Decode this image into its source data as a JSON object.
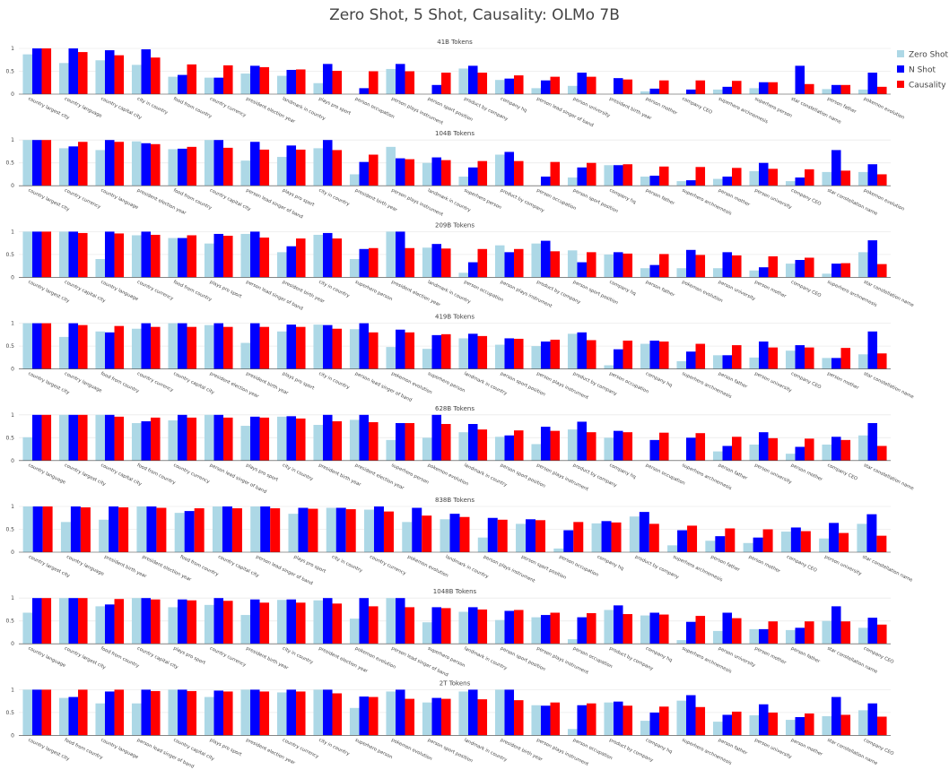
{
  "title": "Zero Shot, 5 Shot, Causality: OLMo 7B",
  "colors": {
    "Zero Shot": "#add8e6",
    "N Shot": "#0000ff",
    "Causality": "#ff0000"
  },
  "chart_data": [
    {
      "type": "bar",
      "title": "41B Tokens",
      "ylim": [
        0,
        1
      ],
      "yticks": [
        "0",
        "0.5",
        "1"
      ],
      "categories": [
        "country largest city",
        "country language",
        "country capital city",
        "city in country",
        "food from country",
        "country currency",
        "president election year",
        "landmark in country",
        "plays pro sport",
        "person occupation",
        "person plays instrument",
        "person sport position",
        "product by company",
        "company hq",
        "person lead singer of band",
        "person university",
        "president birth year",
        "person mother",
        "company CEO",
        "superhero archnemesis",
        "superhero person",
        "star constellation name",
        "person father",
        "pokemon evolution"
      ],
      "series": [
        {
          "name": "Zero Shot",
          "values": [
            0.87,
            0.68,
            0.74,
            0.64,
            0.38,
            0.36,
            0.45,
            0.4,
            0.24,
            0.0,
            0.55,
            0.0,
            0.56,
            0.31,
            0.13,
            0.18,
            0.0,
            0.06,
            0.0,
            0.1,
            0.13,
            0.0,
            0.11,
            0.1
          ]
        },
        {
          "name": "N Shot",
          "values": [
            1.0,
            1.0,
            0.96,
            0.98,
            0.42,
            0.36,
            0.62,
            0.53,
            0.66,
            0.13,
            0.66,
            0.2,
            0.62,
            0.34,
            0.3,
            0.47,
            0.35,
            0.12,
            0.1,
            0.16,
            0.26,
            0.62,
            0.2,
            0.47
          ]
        },
        {
          "name": "Causality",
          "values": [
            1.0,
            0.92,
            0.85,
            0.8,
            0.65,
            0.63,
            0.59,
            0.54,
            0.51,
            0.5,
            0.5,
            0.47,
            0.47,
            0.41,
            0.38,
            0.38,
            0.32,
            0.3,
            0.3,
            0.29,
            0.26,
            0.22,
            0.2,
            0.16
          ]
        }
      ]
    },
    {
      "type": "bar",
      "title": "104B Tokens",
      "ylim": [
        0,
        1
      ],
      "yticks": [
        "0",
        "0.5",
        "1"
      ],
      "categories": [
        "country largest city",
        "country currency",
        "country language",
        "president election year",
        "food from country",
        "country capital city",
        "person lead singer of band",
        "plays pro sport",
        "city in country",
        "president birth year",
        "person plays instrument",
        "landmark in country",
        "superhero person",
        "product by company",
        "person occupation",
        "person sport position",
        "company hq",
        "person father",
        "superhero archnemesis",
        "person mother",
        "person university",
        "company CEO",
        "star constellation name",
        "pokemon evolution"
      ],
      "series": [
        {
          "name": "Zero Shot",
          "values": [
            1.0,
            0.82,
            0.78,
            0.97,
            0.8,
            1.0,
            0.55,
            0.63,
            0.82,
            0.25,
            0.85,
            0.5,
            0.2,
            0.68,
            0.0,
            0.18,
            0.45,
            0.2,
            0.1,
            0.15,
            0.32,
            0.1,
            0.3,
            0.3
          ]
        },
        {
          "name": "N Shot",
          "values": [
            1.0,
            0.86,
            1.0,
            0.93,
            0.81,
            1.0,
            0.96,
            0.88,
            1.0,
            0.52,
            0.6,
            0.62,
            0.4,
            0.74,
            0.2,
            0.4,
            0.45,
            0.22,
            0.12,
            0.2,
            0.5,
            0.18,
            0.78,
            0.47
          ]
        },
        {
          "name": "Causality",
          "values": [
            1.0,
            0.96,
            0.96,
            0.91,
            0.85,
            0.83,
            0.79,
            0.79,
            0.78,
            0.68,
            0.58,
            0.56,
            0.54,
            0.54,
            0.52,
            0.5,
            0.47,
            0.42,
            0.41,
            0.39,
            0.37,
            0.36,
            0.33,
            0.25
          ]
        }
      ]
    },
    {
      "type": "bar",
      "title": "209B Tokens",
      "ylim": [
        0,
        1
      ],
      "yticks": [
        "0",
        "0.5",
        "1"
      ],
      "categories": [
        "country largest city",
        "country capital city",
        "country language",
        "country currency",
        "food from country",
        "plays pro sport",
        "person lead singer of band",
        "president birth year",
        "city in country",
        "superhero person",
        "president election year",
        "landmark in country",
        "person occupation",
        "person plays instrument",
        "product by company",
        "person sport position",
        "company hq",
        "person father",
        "pokemon evolution",
        "person university",
        "person mother",
        "company CEO",
        "superhero archnemesis",
        "star constellation name"
      ],
      "series": [
        {
          "name": "Zero Shot",
          "values": [
            1.0,
            1.0,
            0.4,
            0.92,
            0.86,
            0.74,
            0.95,
            0.55,
            0.93,
            0.4,
            1.0,
            0.65,
            0.1,
            0.7,
            0.74,
            0.59,
            0.5,
            0.2,
            0.2,
            0.2,
            0.15,
            0.3,
            0.08,
            0.55
          ]
        },
        {
          "name": "N Shot",
          "values": [
            1.0,
            1.0,
            1.0,
            1.0,
            0.86,
            0.95,
            1.0,
            0.68,
            0.97,
            0.62,
            1.0,
            0.73,
            0.33,
            0.55,
            0.8,
            0.33,
            0.55,
            0.27,
            0.6,
            0.55,
            0.22,
            0.38,
            0.3,
            0.81
          ]
        },
        {
          "name": "Causality",
          "values": [
            1.0,
            0.97,
            0.96,
            0.93,
            0.92,
            0.91,
            0.87,
            0.85,
            0.85,
            0.64,
            0.64,
            0.63,
            0.62,
            0.62,
            0.57,
            0.55,
            0.52,
            0.51,
            0.49,
            0.48,
            0.46,
            0.43,
            0.31,
            0.29
          ]
        }
      ]
    },
    {
      "type": "bar",
      "title": "419B Tokens",
      "ylim": [
        0,
        1
      ],
      "yticks": [
        "0",
        "0.5",
        "1"
      ],
      "categories": [
        "country largest city",
        "country language",
        "food from country",
        "country currency",
        "country capital city",
        "president election year",
        "president birth year",
        "plays pro sport",
        "city in country",
        "person lead singer of band",
        "pokemon evolution",
        "superhero person",
        "landmark in country",
        "person sport position",
        "person plays instrument",
        "product by company",
        "person occupation",
        "company hq",
        "superhero archnemesis",
        "person father",
        "person university",
        "company CEO",
        "person mother",
        "star constellation name"
      ],
      "series": [
        {
          "name": "Zero Shot",
          "values": [
            1.0,
            0.7,
            0.82,
            0.88,
            1.0,
            0.96,
            0.57,
            0.82,
            0.97,
            0.87,
            0.48,
            0.44,
            0.67,
            0.53,
            0.5,
            0.77,
            0.08,
            0.55,
            0.17,
            0.3,
            0.25,
            0.4,
            0.24,
            0.32
          ]
        },
        {
          "name": "N Shot",
          "values": [
            1.0,
            1.0,
            0.8,
            1.0,
            1.0,
            1.0,
            1.0,
            0.97,
            0.96,
            1.0,
            0.86,
            0.74,
            0.77,
            0.67,
            0.6,
            0.8,
            0.43,
            0.62,
            0.38,
            0.3,
            0.6,
            0.52,
            0.24,
            0.82
          ]
        },
        {
          "name": "Causality",
          "values": [
            1.0,
            0.96,
            0.94,
            0.92,
            0.92,
            0.92,
            0.92,
            0.92,
            0.88,
            0.8,
            0.8,
            0.76,
            0.72,
            0.66,
            0.64,
            0.63,
            0.62,
            0.6,
            0.55,
            0.52,
            0.47,
            0.47,
            0.46,
            0.34
          ]
        }
      ]
    },
    {
      "type": "bar",
      "title": "628B Tokens",
      "ylim": [
        0,
        1
      ],
      "yticks": [
        "0",
        "0.5",
        "1"
      ],
      "categories": [
        "country language",
        "country largest city",
        "country capital city",
        "food from country",
        "country currency",
        "person lead singer of band",
        "plays pro sport",
        "city in country",
        "president birth year",
        "president election year",
        "superhero person",
        "pokemon evolution",
        "landmark in country",
        "person sport position",
        "person plays instrument",
        "product by company",
        "company hq",
        "person occupation",
        "superhero archnemesis",
        "person father",
        "person university",
        "person mother",
        "company CEO",
        "star constellation name"
      ],
      "series": [
        {
          "name": "Zero Shot",
          "values": [
            0.51,
            1.0,
            1.0,
            0.82,
            0.88,
            1.0,
            0.76,
            0.96,
            0.78,
            0.89,
            0.45,
            0.5,
            0.62,
            0.52,
            0.36,
            0.68,
            0.5,
            0.0,
            0.0,
            0.2,
            0.35,
            0.15,
            0.35,
            0.55
          ]
        },
        {
          "name": "N Shot",
          "values": [
            1.0,
            1.0,
            1.0,
            0.86,
            1.0,
            1.0,
            0.96,
            0.97,
            1.0,
            1.0,
            0.82,
            1.0,
            0.8,
            0.55,
            0.74,
            0.85,
            0.65,
            0.45,
            0.5,
            0.32,
            0.62,
            0.3,
            0.52,
            0.82
          ]
        },
        {
          "name": "Causality",
          "values": [
            1.0,
            1.0,
            0.96,
            0.94,
            0.94,
            0.94,
            0.94,
            0.92,
            0.86,
            0.84,
            0.82,
            0.8,
            0.68,
            0.66,
            0.65,
            0.62,
            0.62,
            0.61,
            0.6,
            0.52,
            0.49,
            0.48,
            0.45,
            0.32
          ]
        }
      ]
    },
    {
      "type": "bar",
      "title": "838B Tokens",
      "ylim": [
        0,
        1
      ],
      "yticks": [
        "0",
        "0.5",
        "1"
      ],
      "categories": [
        "country largest city",
        "country language",
        "president birth year",
        "president election year",
        "food from country",
        "country capital city",
        "person lead singer of band",
        "plays pro sport",
        "city in country",
        "country currency",
        "pokemon evolution",
        "landmark in country",
        "person plays instrument",
        "person sport position",
        "person occupation",
        "company hq",
        "product by company",
        "superhero archnemesis",
        "person father",
        "person mother",
        "company CEO",
        "person university",
        "star constellation name"
      ],
      "series": [
        {
          "name": "Zero Shot",
          "values": [
            1.0,
            0.66,
            0.71,
            1.0,
            0.86,
            1.0,
            1.0,
            0.84,
            0.97,
            0.93,
            0.66,
            0.72,
            0.32,
            0.62,
            0.08,
            0.63,
            0.78,
            0.15,
            0.25,
            0.2,
            0.45,
            0.3,
            0.62
          ]
        },
        {
          "name": "N Shot",
          "values": [
            1.0,
            1.0,
            1.0,
            1.0,
            0.9,
            1.0,
            1.0,
            0.97,
            0.97,
            1.0,
            0.97,
            0.84,
            0.75,
            0.72,
            0.48,
            0.68,
            0.88,
            0.48,
            0.35,
            0.32,
            0.54,
            0.64,
            0.83
          ]
        },
        {
          "name": "Causality",
          "values": [
            1.0,
            0.98,
            0.98,
            0.97,
            0.96,
            0.96,
            0.96,
            0.95,
            0.94,
            0.89,
            0.8,
            0.77,
            0.71,
            0.7,
            0.66,
            0.65,
            0.62,
            0.58,
            0.52,
            0.5,
            0.46,
            0.42,
            0.36
          ]
        }
      ]
    },
    {
      "type": "bar",
      "title": "1048B Tokens",
      "ylim": [
        0,
        1
      ],
      "yticks": [
        "0",
        "0.5",
        "1"
      ],
      "categories": [
        "country language",
        "country largest city",
        "food from country",
        "country capital city",
        "plays pro sport",
        "country currency",
        "president birth year",
        "city in country",
        "president election year",
        "pokemon evolution",
        "person lead singer of band",
        "superhero person",
        "landmark in country",
        "person sport position",
        "person plays instrument",
        "person occupation",
        "product by company",
        "company hq",
        "superhero archnemesis",
        "person university",
        "person mother",
        "person father",
        "star constellation name",
        "company CEO"
      ],
      "series": [
        {
          "name": "Zero Shot",
          "values": [
            0.68,
            1.0,
            0.82,
            1.0,
            0.8,
            0.85,
            0.63,
            0.96,
            0.95,
            0.55,
            1.0,
            0.47,
            0.7,
            0.52,
            0.58,
            0.1,
            0.74,
            0.62,
            0.08,
            0.28,
            0.32,
            0.3,
            0.5,
            0.35
          ]
        },
        {
          "name": "N Shot",
          "values": [
            1.0,
            1.0,
            0.86,
            1.0,
            0.97,
            1.0,
            0.97,
            0.97,
            1.0,
            1.0,
            1.0,
            0.8,
            0.8,
            0.72,
            0.63,
            0.58,
            0.84,
            0.68,
            0.48,
            0.68,
            0.32,
            0.35,
            0.82,
            0.57
          ]
        },
        {
          "name": "Causality",
          "values": [
            1.0,
            1.0,
            0.98,
            0.97,
            0.95,
            0.94,
            0.9,
            0.9,
            0.88,
            0.82,
            0.8,
            0.78,
            0.75,
            0.74,
            0.68,
            0.67,
            0.65,
            0.64,
            0.61,
            0.56,
            0.49,
            0.49,
            0.49,
            0.42
          ]
        }
      ]
    },
    {
      "type": "bar",
      "title": "2T Tokens",
      "ylim": [
        0,
        1
      ],
      "yticks": [
        "0",
        "0.5",
        "1"
      ],
      "categories": [
        "country largest city",
        "food from country",
        "country language",
        "person lead singer of band",
        "country capital city",
        "plays pro sport",
        "president election year",
        "country currency",
        "city in country",
        "superhero person",
        "pokemon evolution",
        "person sport position",
        "landmark in country",
        "president birth year",
        "person plays instrument",
        "person occupation",
        "product by company",
        "company hq",
        "superhero archnemesis",
        "person father",
        "person university",
        "person mother",
        "star constellation name",
        "company CEO"
      ],
      "series": [
        {
          "name": "Zero Shot",
          "values": [
            1.0,
            0.82,
            0.7,
            0.7,
            1.0,
            0.84,
            1.0,
            0.94,
            1.0,
            0.6,
            0.96,
            0.72,
            0.96,
            1.0,
            0.66,
            0.14,
            0.72,
            0.32,
            0.76,
            0.3,
            0.44,
            0.34,
            0.42,
            0.55
          ]
        },
        {
          "name": "N Shot",
          "values": [
            1.0,
            0.84,
            0.96,
            1.0,
            1.0,
            0.98,
            1.0,
            1.0,
            1.0,
            0.85,
            1.0,
            0.82,
            1.0,
            1.0,
            0.65,
            0.66,
            0.74,
            0.5,
            0.88,
            0.45,
            0.68,
            0.4,
            0.84,
            0.7
          ]
        },
        {
          "name": "Causality",
          "values": [
            1.0,
            1.0,
            1.0,
            0.97,
            0.97,
            0.96,
            0.96,
            0.96,
            0.92,
            0.84,
            0.8,
            0.8,
            0.79,
            0.77,
            0.72,
            0.7,
            0.65,
            0.63,
            0.62,
            0.52,
            0.5,
            0.48,
            0.45,
            0.41
          ]
        }
      ]
    }
  ]
}
